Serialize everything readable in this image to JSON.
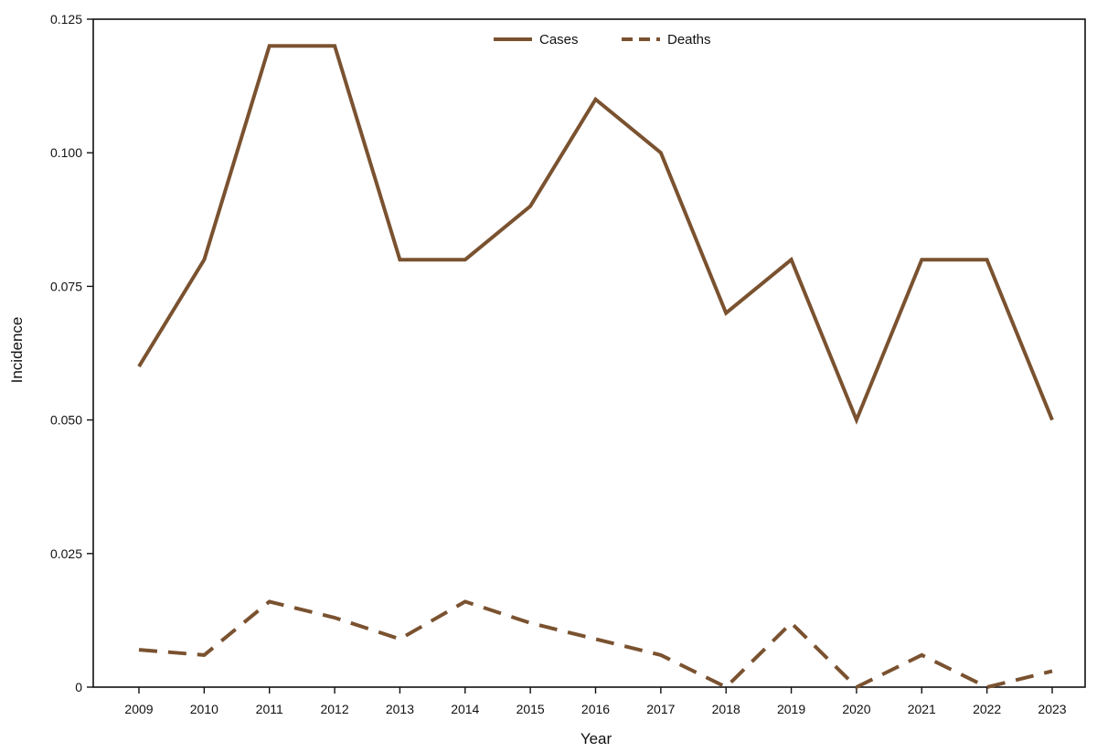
{
  "chart_data": {
    "type": "line",
    "title": "",
    "xlabel": "Year",
    "ylabel": "Incidence",
    "x": [
      "2009",
      "2010",
      "2011",
      "2012",
      "2013",
      "2014",
      "2015",
      "2016",
      "2017",
      "2018",
      "2019",
      "2020",
      "2021",
      "2022",
      "2023"
    ],
    "ylim": [
      0,
      0.125
    ],
    "y_ticks": [
      "0",
      "0.025",
      "0.050",
      "0.075",
      "0.100",
      "0.125"
    ],
    "y_tick_values": [
      0,
      0.025,
      0.05,
      0.075,
      0.1,
      0.125
    ],
    "grid": false,
    "legend_position": "top-center",
    "series": [
      {
        "name": "Cases",
        "style": "solid",
        "color": "#7a5230",
        "values": [
          0.06,
          0.08,
          0.12,
          0.12,
          0.08,
          0.08,
          0.09,
          0.11,
          0.1,
          0.07,
          0.08,
          0.05,
          0.08,
          0.08,
          0.05
        ]
      },
      {
        "name": "Deaths",
        "style": "dashed",
        "color": "#7a5230",
        "values": [
          0.007,
          0.006,
          0.016,
          0.013,
          0.009,
          0.016,
          0.012,
          0.009,
          0.006,
          0.0,
          0.012,
          0.0,
          0.006,
          0.0,
          0.003
        ]
      }
    ]
  }
}
